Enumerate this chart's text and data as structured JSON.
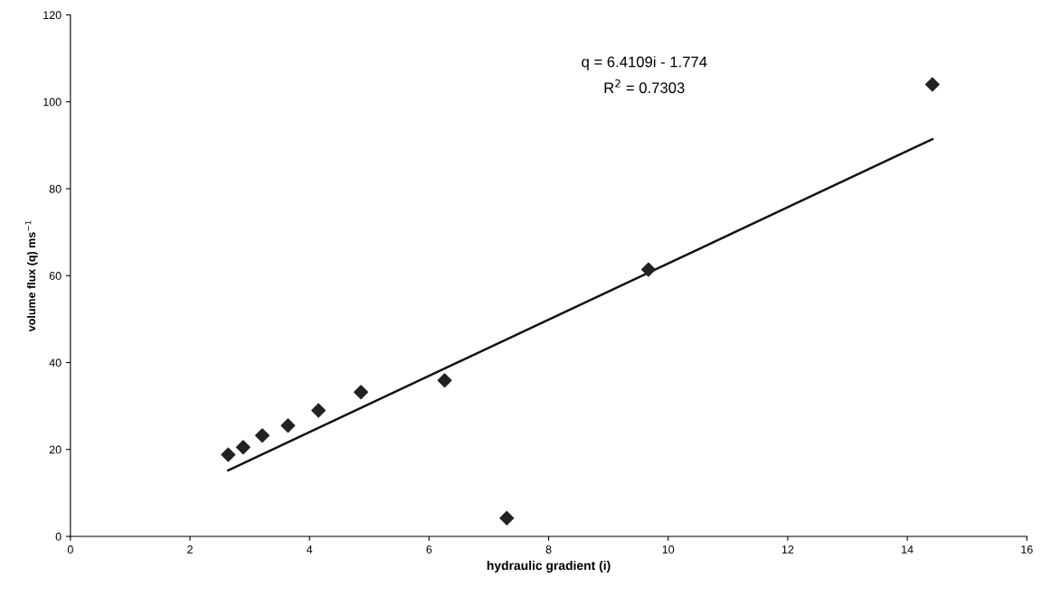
{
  "chart_data": {
    "type": "scatter",
    "xlabel": "hydraulic gradient (i)",
    "ylabel": "volume flux (q) ms$^{−1}$",
    "xlim": [
      0,
      16
    ],
    "xticks": [
      0,
      2,
      4,
      6,
      8,
      10,
      12,
      14,
      16
    ],
    "ylim": [
      0,
      120
    ],
    "yticks": [
      0,
      20,
      40,
      60,
      80,
      100,
      120
    ],
    "grid": false,
    "legend": false,
    "marker": "diamond",
    "series": [
      {
        "color": "#222222",
        "x": [
          2.64,
          2.89,
          3.21,
          3.64,
          4.15,
          4.86,
          6.26,
          7.3,
          9.67,
          14.42
        ],
        "values": [
          18.8,
          20.5,
          23.2,
          25.5,
          29.0,
          33.2,
          35.9,
          4.2,
          61.4,
          104
        ]
      },
      {
        "type": "line",
        "color": "#111111",
        "line_style": "solid",
        "marker": "none",
        "x": [
          2.64,
          14.42
        ],
        "values": [
          15.2,
          91.4
        ]
      }
    ],
    "annotations": [
      "q = 6.4109i - 1.774",
      "R$^{2}$ = 0.7303"
    ]
  }
}
